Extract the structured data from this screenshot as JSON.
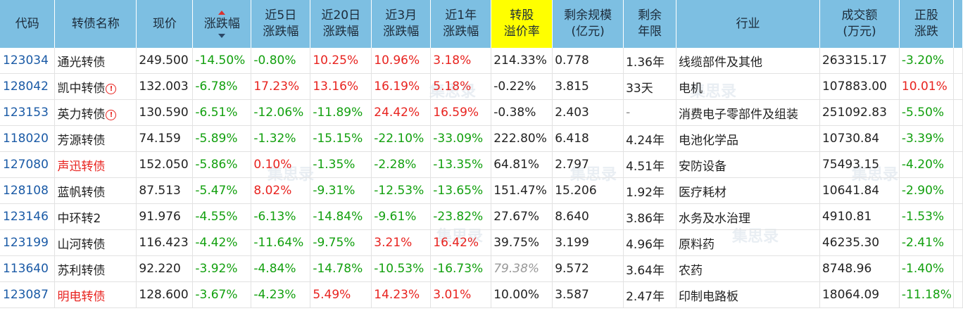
{
  "headers": {
    "code": "代码",
    "name": "转债名称",
    "price": "现价",
    "change": "涨跌幅",
    "chg5d_l1": "近5日",
    "chg5d_l2": "涨跌幅",
    "chg20d_l1": "近20日",
    "chg20d_l2": "涨跌幅",
    "chg3m_l1": "近3月",
    "chg3m_l2": "涨跌幅",
    "chg1y_l1": "近1年",
    "chg1y_l2": "涨跌幅",
    "premium_l1": "转股",
    "premium_l2": "溢价率",
    "scale_l1": "剩余规模",
    "scale_l2": "(亿元)",
    "term_l1": "剩余",
    "term_l2": "年限",
    "industry": "行业",
    "volume_l1": "成交额",
    "volume_l2": "(万元)",
    "stock_l1": "正股",
    "stock_l2": "涨跌"
  },
  "watermark": "集思录",
  "rows": [
    {
      "code": "123034",
      "name": "通光转债",
      "price": "249.500",
      "change": "-14.50%",
      "chg5d": "-0.80%",
      "chg20d": "10.25%",
      "chg3m": "10.96%",
      "chg1y": "3.18%",
      "premium": "214.33%",
      "scale": "0.778",
      "term": "1.36年",
      "industry": "线缆部件及其他",
      "volume": "263315.17",
      "stock": "-3.20%"
    },
    {
      "code": "128042",
      "name": "凯中转债",
      "warn": "!",
      "price": "132.003",
      "change": "-6.78%",
      "chg5d": "17.23%",
      "chg20d": "13.16%",
      "chg3m": "16.19%",
      "chg1y": "5.18%",
      "premium": "-0.22%",
      "scale": "3.815",
      "term": "33天",
      "industry": "电机",
      "volume": "107883.00",
      "stock": "10.01%"
    },
    {
      "code": "123153",
      "name": "英力转债",
      "warn": "!",
      "price": "130.590",
      "change": "-6.51%",
      "chg5d": "-12.06%",
      "chg20d": "-11.89%",
      "chg3m": "24.42%",
      "chg1y": "16.59%",
      "premium": "-0.38%",
      "scale": "2.403",
      "term": "-",
      "industry": "消费电子零部件及组装",
      "volume": "251092.83",
      "stock": "-5.50%"
    },
    {
      "code": "118020",
      "name": "芳源转债",
      "price": "74.159",
      "change": "-5.89%",
      "chg5d": "-1.32%",
      "chg20d": "-15.15%",
      "chg3m": "-22.10%",
      "chg1y": "-33.09%",
      "premium": "222.80%",
      "scale": "6.418",
      "term": "4.24年",
      "industry": "电池化学品",
      "volume": "10730.84",
      "stock": "-3.39%"
    },
    {
      "code": "127080",
      "name": "声迅转债",
      "price": "152.050",
      "change": "-5.86%",
      "chg5d": "0.10%",
      "chg20d": "-1.35%",
      "chg3m": "-2.28%",
      "chg1y": "-13.35%",
      "premium": "64.81%",
      "scale": "2.797",
      "term": "4.51年",
      "industry": "安防设备",
      "volume": "75493.15",
      "stock": "-4.20%"
    },
    {
      "code": "128108",
      "name": "蓝帆转债",
      "price": "87.513",
      "change": "-5.47%",
      "chg5d": "8.02%",
      "chg20d": "-9.31%",
      "chg3m": "-12.53%",
      "chg1y": "-13.65%",
      "premium": "151.47%",
      "scale": "15.206",
      "term": "1.92年",
      "industry": "医疗耗材",
      "volume": "10641.84",
      "stock": "-2.90%"
    },
    {
      "code": "123146",
      "name": "中环转2",
      "price": "91.976",
      "change": "-4.55%",
      "chg5d": "-6.13%",
      "chg20d": "-14.84%",
      "chg3m": "-9.61%",
      "chg1y": "-23.82%",
      "premium": "27.67%",
      "scale": "8.640",
      "term": "3.86年",
      "industry": "水务及水治理",
      "volume": "4910.81",
      "stock": "-1.53%"
    },
    {
      "code": "123199",
      "name": "山河转债",
      "price": "116.423",
      "change": "-4.42%",
      "chg5d": "-11.64%",
      "chg20d": "-9.75%",
      "chg3m": "3.21%",
      "chg1y": "16.42%",
      "premium": "39.75%",
      "scale": "3.199",
      "term": "4.96年",
      "industry": "原料药",
      "volume": "46235.30",
      "stock": "-2.41%"
    },
    {
      "code": "113640",
      "name": "苏利转债",
      "price": "92.220",
      "change": "-3.92%",
      "chg5d": "-4.84%",
      "chg20d": "-14.78%",
      "chg3m": "-10.53%",
      "chg1y": "-16.73%",
      "premium": "79.38%",
      "scale": "9.572",
      "term": "3.64年",
      "industry": "农药",
      "volume": "8748.96",
      "stock": "-1.40%"
    },
    {
      "code": "123087",
      "name": "明电转债",
      "price": "128.600",
      "change": "-3.67%",
      "chg5d": "-4.23%",
      "chg20d": "5.49%",
      "chg3m": "14.23%",
      "chg1y": "3.01%",
      "premium": "10.00%",
      "scale": "3.587",
      "term": "2.47年",
      "industry": "印制电路板",
      "volume": "18064.09",
      "stock": "-11.18%"
    }
  ]
}
